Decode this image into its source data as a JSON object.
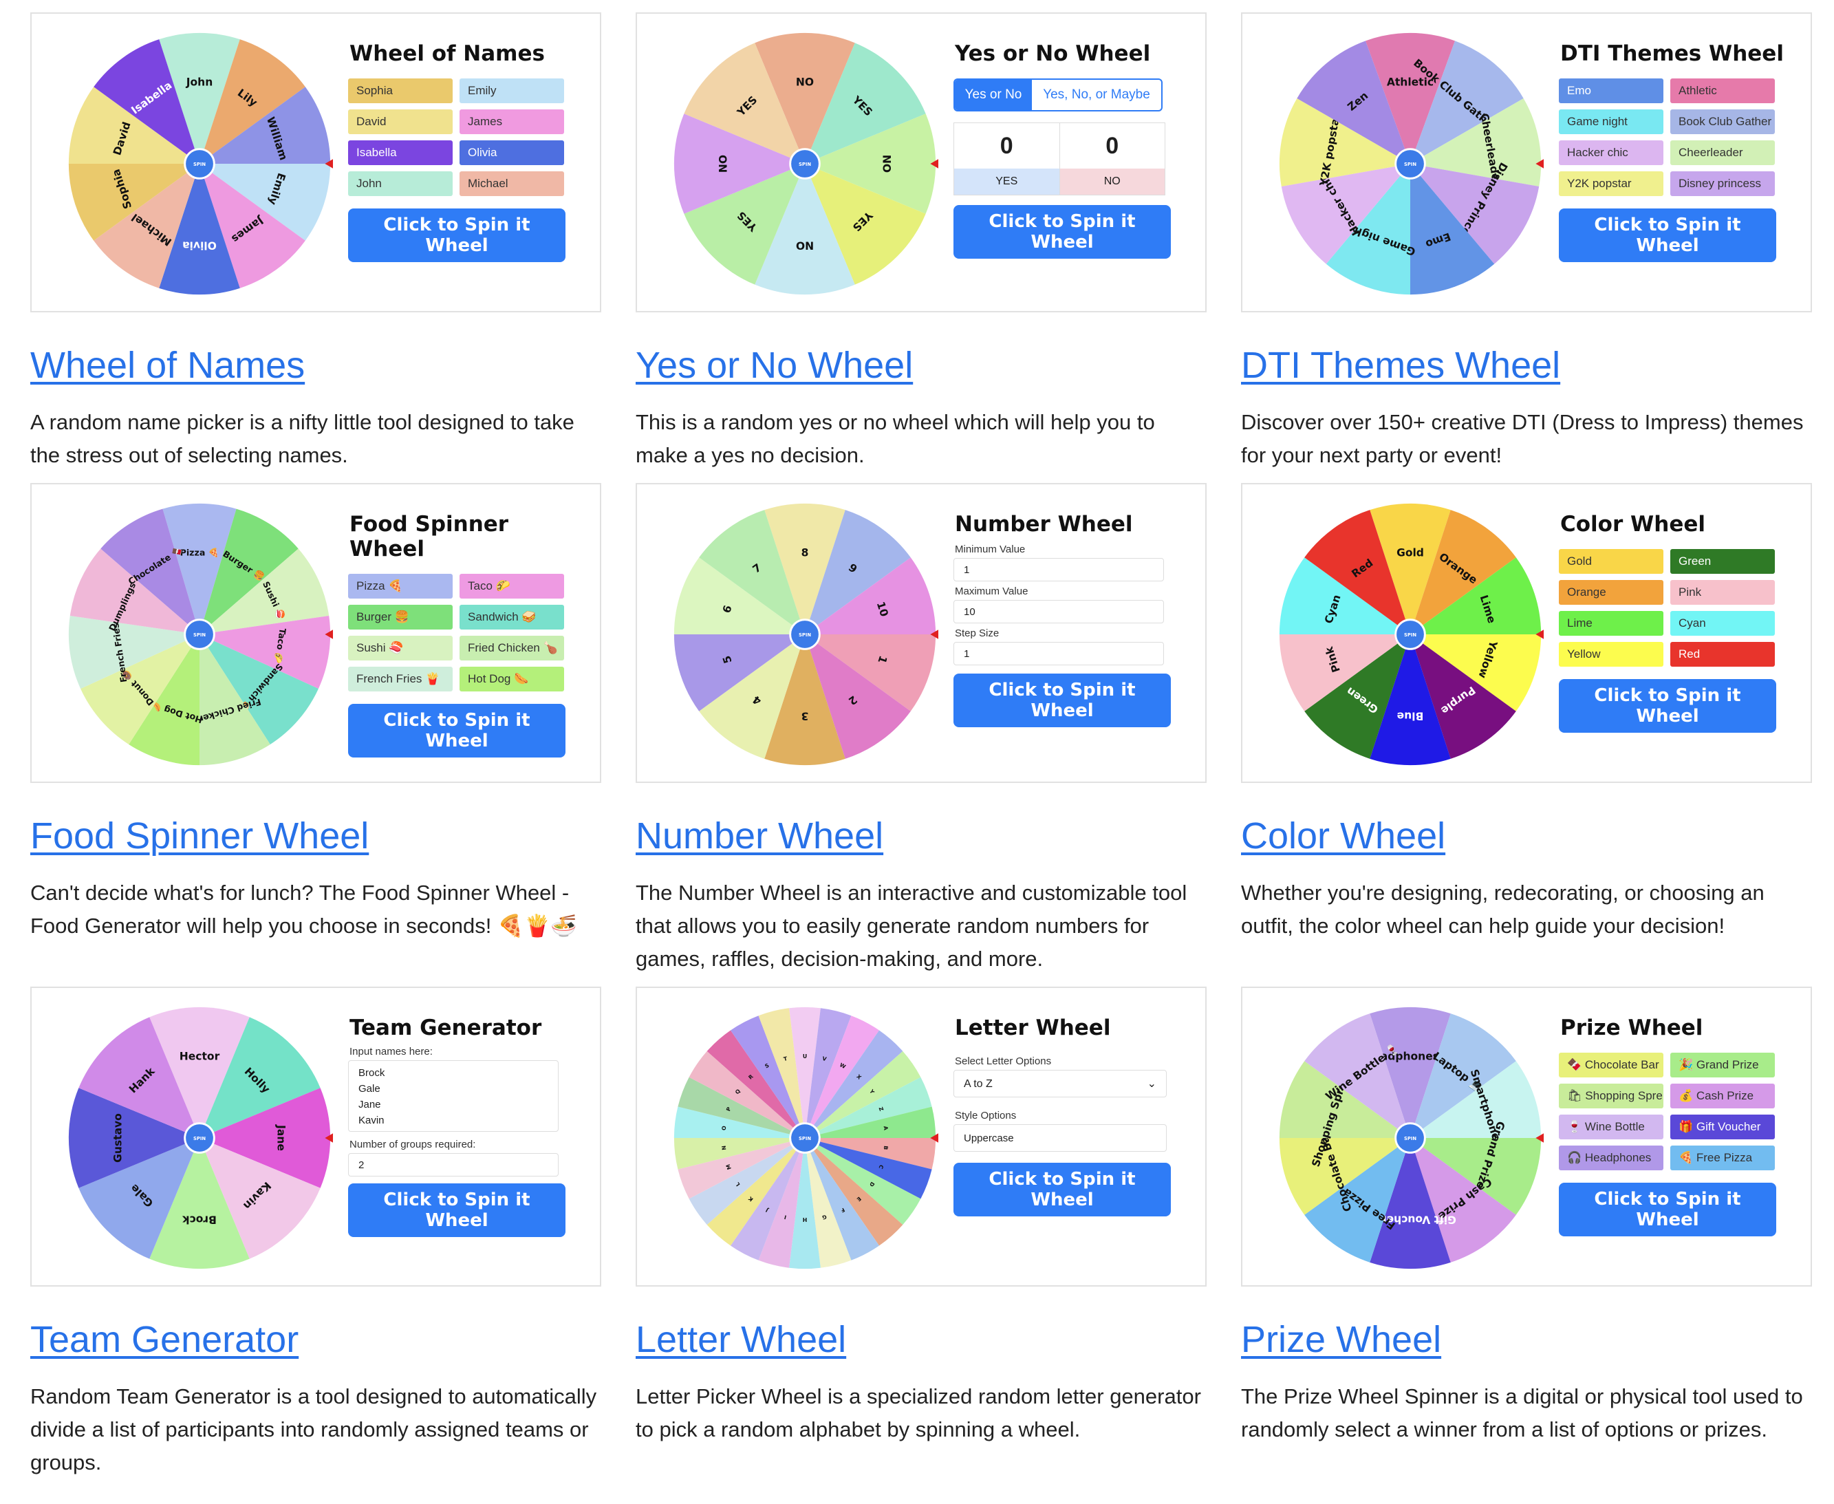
{
  "cards": [
    {
      "preview_title": "Wheel of Names",
      "spin_label": "Click to Spin it Wheel",
      "title": "Wheel of Names",
      "description": "A random name picker is a nifty little tool designed to take the stress out of selecting names.",
      "chips": [
        {
          "label": "Sophia",
          "color": "#eac96c"
        },
        {
          "label": "Emily",
          "color": "#bfe1f6"
        },
        {
          "label": "David",
          "color": "#f0e28e"
        },
        {
          "label": "James",
          "color": "#f09ae0"
        },
        {
          "label": "Isabella",
          "color": "#7b45e0"
        },
        {
          "label": "Olivia",
          "color": "#4e6fe0"
        },
        {
          "label": "John",
          "color": "#b7ecd8"
        },
        {
          "label": "Michael",
          "color": "#f0b8a6"
        }
      ],
      "wheel": {
        "labels": [
          "John",
          "Lily",
          "William",
          "Emily",
          "James",
          "Olivia",
          "Michael",
          "Sophia",
          "David",
          "Isabella"
        ],
        "colors": [
          "#b7ecd8",
          "#eba96e",
          "#8e93e6",
          "#bfe1f6",
          "#ee9ae0",
          "#4e6fe0",
          "#f0b8a6",
          "#eac96c",
          "#f0e28e",
          "#7b45e0"
        ]
      }
    },
    {
      "preview_title": "Yes or No Wheel",
      "spin_label": "Click to Spin it Wheel",
      "title": "Yes or No Wheel",
      "description": "This is a random yes or no wheel which will help you to make a yes no decision.",
      "mode_options": [
        "Yes or No",
        "Yes, No, or Maybe"
      ],
      "yes_count": "0",
      "no_count": "0",
      "yes_label": "YES",
      "no_label": "NO",
      "wheel": {
        "labels": [
          "NO",
          "YES",
          "NO",
          "YES",
          "NO",
          "YES",
          "NO",
          "YES"
        ],
        "colors": [
          "#ebad8e",
          "#9ee8cc",
          "#c8f2a4",
          "#e6f07a",
          "#c6e9f2",
          "#b9eea6",
          "#d6a1ef",
          "#f2d4a8"
        ]
      }
    },
    {
      "preview_title": "DTI Themes Wheel",
      "spin_label": "Click to Spin it Wheel",
      "title": "DTI Themes Wheel",
      "description": "Discover over 150+ creative DTI (Dress to Impress) themes for your next party or event!",
      "chips": [
        {
          "label": "Emo",
          "color": "#5f8fe6"
        },
        {
          "label": "Athletic",
          "color": "#e67aaa"
        },
        {
          "label": "Game night",
          "color": "#79e8f2"
        },
        {
          "label": "Book Club Gather",
          "color": "#a6b6e6"
        },
        {
          "label": "Hacker chic",
          "color": "#dcb6f0"
        },
        {
          "label": "Cheerleader",
          "color": "#d2f0b6"
        },
        {
          "label": "Y2K popstar",
          "color": "#f0f08e"
        },
        {
          "label": "Disney princess",
          "color": "#c6a6ec"
        }
      ],
      "wheel": {
        "labels": [
          "Athletic",
          "Book Club Gathering",
          "Cheerleader",
          "Disney Princess",
          "Emo",
          "Game night",
          "Hacker chic",
          "Y2K popstar",
          "Zen"
        ],
        "colors": [
          "#e07ab0",
          "#a6b8ec",
          "#d4f2b8",
          "#c8a4ec",
          "#6294e6",
          "#7ee8f0",
          "#e0b8f2",
          "#f0f08c",
          "#a38ae4"
        ]
      }
    },
    {
      "preview_title": "Food Spinner Wheel",
      "spin_label": "Click to Spin it Wheel",
      "title": "Food Spinner Wheel",
      "description": "Can't decide what's for lunch? The Food Spinner Wheel - Food Generator will help you choose in seconds! 🍕🍟🍜",
      "chips": [
        {
          "label": "Pizza 🍕",
          "color": "#aab8f0"
        },
        {
          "label": "Taco 🌮",
          "color": "#ee9ae2"
        },
        {
          "label": "Burger 🍔",
          "color": "#7ee07a"
        },
        {
          "label": "Sandwich 🥪",
          "color": "#79e0cc"
        },
        {
          "label": "Sushi 🍣",
          "color": "#d8f2c0"
        },
        {
          "label": "Fried Chicken 🍗",
          "color": "#c8eeb0"
        },
        {
          "label": "French Fries 🍟",
          "color": "#cfeedc"
        },
        {
          "label": "Hot Dog 🌭",
          "color": "#b4f07a"
        }
      ],
      "wheel": {
        "labels": [
          "Pizza 🍕",
          "Burger 🍔",
          "Sushi 🍣",
          "Taco 🌮",
          "Sandwich 🥪",
          "Fried Chicken 🍗",
          "Hot Dog 🌭",
          "Donut 🍩",
          "French Fries 🍟",
          "Dumplings 🥟",
          "Chocolate 🍫"
        ],
        "colors": [
          "#aab8f0",
          "#7ee07a",
          "#d8f2c0",
          "#ee9ae2",
          "#79e0cc",
          "#c8eeb0",
          "#b4f07a",
          "#e2f2a4",
          "#cfeedc",
          "#f0b8d8",
          "#a98ae4"
        ]
      }
    },
    {
      "preview_title": "Number Wheel",
      "spin_label": "Click to Spin it Wheel",
      "title": "Number Wheel",
      "description": "The Number Wheel is an interactive and customizable tool that allows you to easily generate random numbers for games, raffles, decision-making, and more.",
      "fields": [
        {
          "label": "Minimum Value",
          "value": "1"
        },
        {
          "label": "Maximum Value",
          "value": "10"
        },
        {
          "label": "Step Size",
          "value": "1"
        }
      ],
      "wheel": {
        "labels": [
          "8",
          "9",
          "10",
          "1",
          "2",
          "3",
          "4",
          "5",
          "6",
          "7"
        ],
        "colors": [
          "#f0e8a8",
          "#a4b6ec",
          "#e692e2",
          "#ef9fb6",
          "#e07cc8",
          "#e0b060",
          "#e8f0b0",
          "#a898e8",
          "#dcf6c0",
          "#b8ecb0"
        ]
      }
    },
    {
      "preview_title": "Color Wheel",
      "spin_label": "Click to Spin it Wheel",
      "title": "Color Wheel",
      "description": "Whether you're designing, redecorating, or choosing an outfit, the color wheel can help guide your decision!",
      "chips": [
        {
          "label": "Gold",
          "color": "#f9d648"
        },
        {
          "label": "Green",
          "color": "#2f7a26"
        },
        {
          "label": "Orange",
          "color": "#f2a33c"
        },
        {
          "label": "Pink",
          "color": "#f7c1cb"
        },
        {
          "label": "Lime",
          "color": "#6ef04a"
        },
        {
          "label": "Cyan",
          "color": "#72f5f5"
        },
        {
          "label": "Yellow",
          "color": "#fcfc4e"
        },
        {
          "label": "Red",
          "color": "#e8342c"
        }
      ],
      "wheel": {
        "labels": [
          "Gold",
          "Orange",
          "Lime",
          "Yellow",
          "Purple",
          "Blue",
          "Green",
          "Pink",
          "Cyan",
          "Red"
        ],
        "colors": [
          "#f9d648",
          "#f2a33c",
          "#6ef04a",
          "#fcfc4e",
          "#780f80",
          "#1f1ae6",
          "#2f7a26",
          "#f7c1cb",
          "#72f5f5",
          "#e8342c"
        ]
      }
    },
    {
      "preview_title": "Team Generator",
      "spin_label": "Click to Spin it Wheel",
      "title": "Team Generator",
      "description": "Random Team Generator is a tool designed to automatically divide a list of participants into randomly assigned teams or groups.",
      "names_label": "Input names here:",
      "names_value": "Brock\nGale\nJane\nKavin",
      "groups_label": "Number of groups required:",
      "groups_value": "2",
      "wheel": {
        "labels": [
          "Hector",
          "Holly",
          "Jane",
          "Kavin",
          "Brock",
          "Gale",
          "Gustavo",
          "Hank"
        ],
        "colors": [
          "#f0c8f0",
          "#74e2c8",
          "#e05ad8",
          "#f2c8e8",
          "#b6f2a0",
          "#90a8ec",
          "#5a58d8",
          "#d08ae8"
        ]
      }
    },
    {
      "preview_title": "Letter Wheel",
      "spin_label": "Click to Spin it Wheel",
      "title": "Letter Wheel",
      "description": "Letter Picker Wheel is a specialized random letter generator to pick a random alphabet by spinning a wheel.",
      "select_label": "Select Letter Options",
      "select_value": "A to Z",
      "style_label": "Style Options",
      "style_value": "Uppercase",
      "wheel": {
        "labels": [
          "U",
          "V",
          "W",
          "X",
          "Y",
          "Z",
          "A",
          "B",
          "C",
          "D",
          "E",
          "F",
          "G",
          "H",
          "I",
          "J",
          "K",
          "L",
          "M",
          "N",
          "O",
          "P",
          "Q",
          "R",
          "S",
          "T"
        ],
        "colors": [
          "#f2ccf2",
          "#b9a8f0",
          "#f2a8f0",
          "#a8b4f0",
          "#c8f2a8",
          "#a8f0d8",
          "#8ee88e",
          "#f0a8a8",
          "#4868e6",
          "#a8f0a8",
          "#e8a888",
          "#a8c8f0",
          "#f2f2c8",
          "#a8e8f0",
          "#e8b8e8",
          "#c8b8f0",
          "#f0e88e",
          "#c8d8f0",
          "#f2c8d8",
          "#d8f0a8",
          "#a8f0f0",
          "#a8d8a8",
          "#f0b8c8",
          "#e06aa8",
          "#a898f0",
          "#f2e8a8"
        ]
      }
    },
    {
      "preview_title": "Prize Wheel",
      "spin_label": "Click to Spin it Wheel",
      "title": "Prize Wheel",
      "description": "The Prize Wheel Spinner is a digital or physical tool used to randomly select a winner from a list of options or prizes.",
      "chips": [
        {
          "label": "🍫 Chocolate Bar",
          "color": "#e8f07a"
        },
        {
          "label": "🎉 Grand Prize",
          "color": "#a8ec8a"
        },
        {
          "label": "🛍 Shopping Spre",
          "color": "#c8ec9a"
        },
        {
          "label": "💰 Cash Prize",
          "color": "#d59ae8"
        },
        {
          "label": "🍷 Wine Bottle",
          "color": "#d2b8f0"
        },
        {
          "label": "🎁 Gift Voucher",
          "color": "#5a48d8"
        },
        {
          "label": "🎧 Headphones",
          "color": "#b098e8"
        },
        {
          "label": "🍕 Free Pizza",
          "color": "#72bcf0"
        }
      ],
      "wheel": {
        "labels": [
          "Headphones 🎧",
          "Laptop 💻",
          "Smartphone 📱",
          "Grand Prize 🎉",
          "Cash Prize 💰",
          "Gift Voucher 🎁",
          "Free Pizza 🍕",
          "Chocolate Bar 🍫",
          "Shopping Spree 🛍",
          "Wine Bottle 🍷"
        ],
        "colors": [
          "#b49ae8",
          "#a8c8f0",
          "#c8f4f0",
          "#a8ec8a",
          "#d59ae8",
          "#5a48d8",
          "#72bcf0",
          "#e8f07a",
          "#c8ec9a",
          "#d2b8f0"
        ]
      }
    }
  ],
  "center_label": "SPIN",
  "pointer_color": "#e02020",
  "hub_color": "#3b7be8",
  "accent_color": "#2f7cf6"
}
